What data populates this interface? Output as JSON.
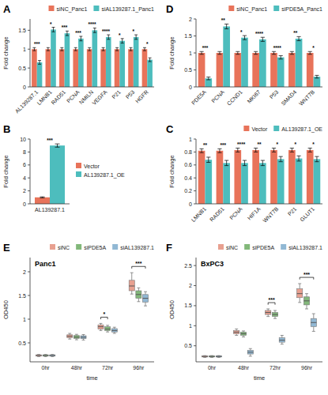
{
  "chart_data": [
    {
      "type": "bar",
      "annotations": [
        "A"
      ],
      "categories": [
        "AL139287.1",
        "LMNB1",
        "RAD51",
        "PCNA",
        "NMILN",
        "VEGFA",
        "P21",
        "P53",
        "HGFR"
      ],
      "series": [
        {
          "name": "siNC_Panc1",
          "color": "#E8735A",
          "values": [
            1.0,
            1.0,
            1.0,
            1.0,
            1.0,
            1.0,
            1.0,
            1.0,
            1.0
          ],
          "errors": [
            0.04,
            0.04,
            0.04,
            0.04,
            0.04,
            0.04,
            0.04,
            0.04,
            0.04
          ]
        },
        {
          "name": "siAL139287.1_Panc1",
          "color": "#4DBDBD",
          "values": [
            0.65,
            1.52,
            1.42,
            1.28,
            1.5,
            1.32,
            1.22,
            1.32,
            0.72
          ],
          "errors": [
            0.05,
            0.06,
            0.06,
            0.06,
            0.06,
            0.06,
            0.06,
            0.06,
            0.05
          ]
        }
      ],
      "stars": [
        "***",
        "*",
        "***",
        "***",
        "****",
        "****",
        "*",
        "*",
        "*"
      ],
      "y_label": "Fold change",
      "ylim": [
        0.0,
        1.8
      ],
      "yticks": [
        0,
        0.5,
        1,
        1.5
      ],
      "legend": "upper right"
    },
    {
      "type": "bar",
      "annotations": [
        "B"
      ],
      "categories": [
        "AL139287.1"
      ],
      "series": [
        {
          "name": "Vector",
          "color": "#E8735A",
          "values": [
            1.0
          ],
          "errors": [
            0.08
          ]
        },
        {
          "name": "AL139287.1_OE",
          "color": "#4DBDBD",
          "values": [
            9.0
          ],
          "errors": [
            0.25
          ]
        }
      ],
      "stars": [
        "***"
      ],
      "y_label": "Fold change",
      "ylim": [
        0.0,
        10.0
      ],
      "yticks": [
        0,
        2,
        4,
        6,
        8,
        10
      ],
      "legend": "right"
    },
    {
      "type": "bar",
      "annotations": [
        "C"
      ],
      "categories": [
        "LMNB1",
        "RAD51",
        "PCNA",
        "HIF1A",
        "WNT7B",
        "P21",
        "GLUT1"
      ],
      "series": [
        {
          "name": "Vector",
          "color": "#E8735A",
          "values": [
            0.82,
            0.82,
            0.83,
            0.83,
            0.83,
            0.83,
            0.83
          ],
          "errors": [
            0.03,
            0.03,
            0.03,
            0.03,
            0.03,
            0.03,
            0.03
          ]
        },
        {
          "name": "AL139287.1_OE",
          "color": "#4DBDBD",
          "values": [
            0.68,
            0.63,
            0.63,
            0.63,
            0.69,
            0.7,
            0.69
          ],
          "errors": [
            0.04,
            0.04,
            0.04,
            0.04,
            0.04,
            0.04,
            0.04
          ]
        }
      ],
      "stars": [
        "**",
        "***",
        "****",
        "**",
        "*",
        "*",
        "*"
      ],
      "y_label": "Fold change",
      "ylim": [
        0.0,
        1.0
      ],
      "yticks": [
        0,
        0.2,
        0.4,
        0.6,
        0.8,
        1
      ],
      "legend": "upper right"
    },
    {
      "type": "bar",
      "annotations": [
        "D"
      ],
      "categories": [
        "PDE5A",
        "PCNA",
        "CCND1",
        "MKI67",
        "P53",
        "SMAD4",
        "WNT7B"
      ],
      "series": [
        {
          "name": "siNC_Panc1",
          "color": "#E8735A",
          "values": [
            1.0,
            1.0,
            1.0,
            1.0,
            1.0,
            1.0,
            1.0
          ],
          "errors": [
            0.04,
            0.04,
            0.04,
            0.04,
            0.04,
            0.04,
            0.04
          ]
        },
        {
          "name": "siPDE5A_Panc1",
          "color": "#4DBDBD",
          "values": [
            0.25,
            1.78,
            1.45,
            1.4,
            0.87,
            1.42,
            0.3
          ],
          "errors": [
            0.04,
            0.07,
            0.06,
            0.06,
            0.05,
            0.06,
            0.04
          ]
        }
      ],
      "stars": [
        "***",
        "**",
        "*",
        "****",
        "****",
        "**",
        "*"
      ],
      "y_label": "Fold change",
      "ylim": [
        0.0,
        2.0
      ],
      "yticks": [
        0,
        0.5,
        1,
        1.5,
        2
      ],
      "legend": "upper right"
    },
    {
      "type": "box",
      "annotations": [
        "E"
      ],
      "title": "Panc1",
      "x_label": "time",
      "y_label": "OD450",
      "categories": [
        "0hr",
        "48hr",
        "72hr",
        "96hr"
      ],
      "series": [
        {
          "name": "siNC",
          "color": "#E8A090",
          "median": [
            0.235,
            0.64,
            0.84,
            1.7
          ],
          "q1": [
            0.22,
            0.61,
            0.79,
            1.6
          ],
          "q3": [
            0.248,
            0.67,
            0.88,
            1.82
          ],
          "whisker_low": [
            0.21,
            0.58,
            0.76,
            1.53
          ],
          "whisker_high": [
            0.255,
            0.7,
            0.91,
            1.98
          ]
        },
        {
          "name": "siPDE5A",
          "color": "#82B87A",
          "median": [
            0.235,
            0.62,
            0.79,
            1.52
          ],
          "q1": [
            0.22,
            0.595,
            0.76,
            1.44
          ],
          "q3": [
            0.248,
            0.655,
            0.84,
            1.6
          ],
          "whisker_low": [
            0.21,
            0.565,
            0.73,
            1.37
          ],
          "whisker_high": [
            0.255,
            0.68,
            0.87,
            1.66
          ]
        },
        {
          "name": "siAL139287.1",
          "color": "#91B8D4",
          "median": [
            0.235,
            0.618,
            0.76,
            1.44
          ],
          "q1": [
            0.22,
            0.59,
            0.73,
            1.36
          ],
          "q3": [
            0.248,
            0.65,
            0.8,
            1.52
          ],
          "whisker_low": [
            0.21,
            0.56,
            0.7,
            1.28
          ],
          "whisker_high": [
            0.255,
            0.675,
            0.83,
            1.58
          ]
        }
      ],
      "brackets": [
        {
          "at": "96hr",
          "between": [
            "siNC",
            "siAL139287.1"
          ],
          "label": "***"
        },
        {
          "at": "72hr",
          "between": [
            "siNC",
            "siPDE5A"
          ],
          "label": "*"
        }
      ],
      "ylim": [
        0.1,
        2.3
      ],
      "yticks": [
        0.5,
        1,
        1.5,
        2
      ],
      "legend": "upper right"
    },
    {
      "type": "box",
      "annotations": [
        "F"
      ],
      "title": "BxPC3",
      "x_label": "time",
      "y_label": "OD450",
      "categories": [
        "0hr",
        "48hr",
        "72hr",
        "96hr"
      ],
      "series": [
        {
          "name": "siNC",
          "color": "#E8A090",
          "median": [
            0.235,
            0.84,
            1.33,
            1.8
          ],
          "q1": [
            0.22,
            0.8,
            1.28,
            1.7
          ],
          "q3": [
            0.248,
            0.88,
            1.38,
            1.92
          ],
          "whisker_low": [
            0.21,
            0.76,
            1.23,
            1.58
          ],
          "whisker_high": [
            0.255,
            0.92,
            1.42,
            2.05
          ]
        },
        {
          "name": "siPDE5A",
          "color": "#82B87A",
          "median": [
            0.235,
            0.8,
            1.28,
            1.62
          ],
          "q1": [
            0.22,
            0.76,
            1.23,
            1.52
          ],
          "q3": [
            0.248,
            0.84,
            1.33,
            1.72
          ],
          "whisker_low": [
            0.21,
            0.72,
            1.18,
            1.42
          ],
          "whisker_high": [
            0.255,
            0.87,
            1.38,
            1.8
          ]
        },
        {
          "name": "siAL139287.1",
          "color": "#91B8D4",
          "median": [
            0.235,
            0.34,
            0.64,
            1.08
          ],
          "q1": [
            0.22,
            0.295,
            0.59,
            0.98
          ],
          "q3": [
            0.248,
            0.385,
            0.7,
            1.18
          ],
          "whisker_low": [
            0.21,
            0.24,
            0.54,
            0.86
          ],
          "whisker_high": [
            0.255,
            0.43,
            0.76,
            1.3
          ]
        }
      ],
      "brackets": [
        {
          "at": "96hr",
          "between": [
            "siNC",
            "siAL139287.1"
          ],
          "label": "***"
        },
        {
          "at": "72hr",
          "between": [
            "siNC",
            "siPDE5A"
          ],
          "label": "***"
        }
      ],
      "ylim": [
        0.1,
        2.7
      ],
      "yticks": [
        0.5,
        1,
        1.5,
        2,
        2.5
      ],
      "legend": "upper right"
    }
  ]
}
